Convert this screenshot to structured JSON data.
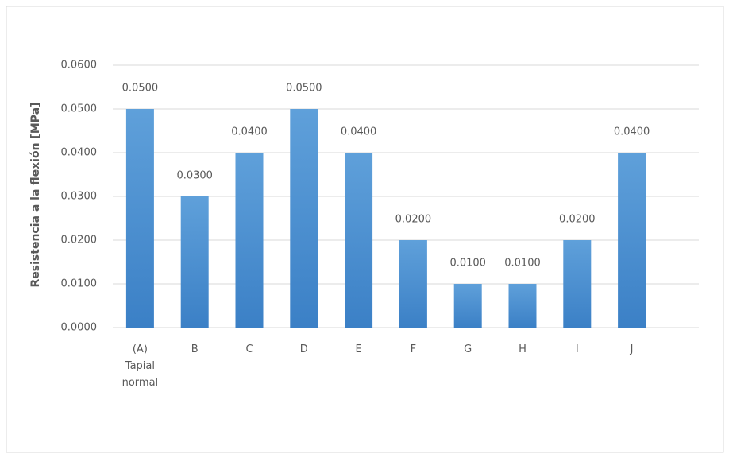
{
  "chart_data": {
    "type": "bar",
    "y_label": "Resistencia  a la flexión [MPa]",
    "categories": [
      "(A) Tapial normal",
      "B",
      "C",
      "D",
      "E",
      "F",
      "G",
      "H",
      "I",
      "J"
    ],
    "values": [
      0.05,
      0.03,
      0.04,
      0.05,
      0.04,
      0.02,
      0.01,
      0.01,
      0.02,
      0.04
    ],
    "value_labels": [
      "0.0500",
      "0.0300",
      "0.0400",
      "0.0500",
      "0.0400",
      "0.0200",
      "0.0100",
      "0.0100",
      "0.0200",
      "0.0400"
    ],
    "color": "#5b9bd5",
    "ylim": [
      0,
      0.06
    ],
    "yticks": [
      {
        "value": 0,
        "label": "0.0000"
      },
      {
        "value": 0.01,
        "label": "0.0100"
      },
      {
        "value": 0.02,
        "label": "0.0200"
      },
      {
        "value": 0.03,
        "label": "0.0300"
      },
      {
        "value": 0.04,
        "label": "0.0400"
      },
      {
        "value": 0.05,
        "label": "0.0500"
      },
      {
        "value": 0.06,
        "label": "0.0600"
      }
    ],
    "grid": true
  }
}
